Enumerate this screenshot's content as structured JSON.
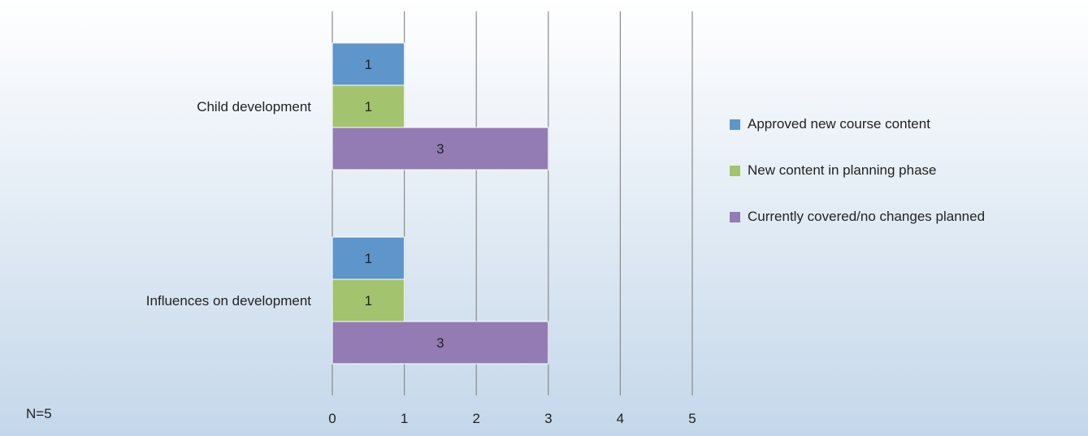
{
  "note": "N=5",
  "colors": {
    "background_top": "#ffffff",
    "background_bottom": "#c4d7ea",
    "grid": "#8a8a8a",
    "approved": "#5e95cb",
    "planning": "#a3c36e",
    "covered": "#927cb3"
  },
  "chart_data": {
    "type": "bar",
    "orientation": "horizontal",
    "categories": [
      "Child development",
      "Influences on development"
    ],
    "series": [
      {
        "name": "Approved new course content",
        "values": [
          1,
          1
        ],
        "color": "#5e95cb"
      },
      {
        "name": "New content in planning phase",
        "values": [
          1,
          1
        ],
        "color": "#a3c36e"
      },
      {
        "name": "Currently covered/no changes planned",
        "values": [
          3,
          3
        ],
        "color": "#927cb3"
      }
    ],
    "xlim": [
      0,
      5
    ],
    "xticks": [
      "0",
      "1",
      "2",
      "3",
      "4",
      "5"
    ],
    "grid": true,
    "legend": "right",
    "data_labels": true
  }
}
